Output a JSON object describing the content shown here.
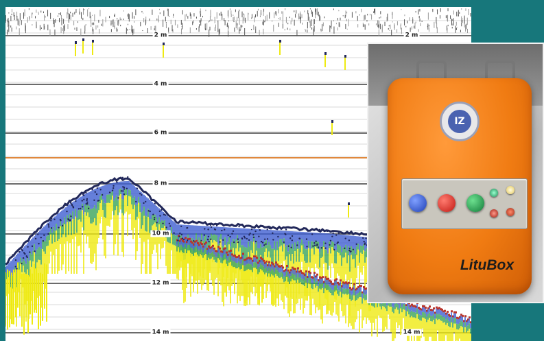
{
  "echogram": {
    "depth_labels": [
      "2 m",
      "4 m",
      "6 m",
      "8 m",
      "10 m",
      "12 m",
      "14 m"
    ],
    "right_depth_labels": [
      "2 m",
      "14 m"
    ],
    "colors": {
      "background": "#ffffff",
      "grid_major": "#6b6b6b",
      "grid_minor": "#d8d8d8",
      "marker_line": "#e0883c",
      "echo_dark": "#22285a",
      "echo_blue": "#3f5fd0",
      "echo_green": "#3aa35a",
      "echo_yellow": "#eeea12",
      "echo_red": "#b8352c"
    }
  },
  "device": {
    "label": "LituBox",
    "logo_text": "IZ",
    "colors": {
      "case": "#f07b12",
      "panel": "#c9c6bd"
    },
    "controls": [
      "blue-knob",
      "red-knob",
      "green-knob",
      "green-led",
      "yellow-led",
      "red-led",
      "red-led-2"
    ]
  },
  "colors": {
    "frame": "#17777b"
  }
}
